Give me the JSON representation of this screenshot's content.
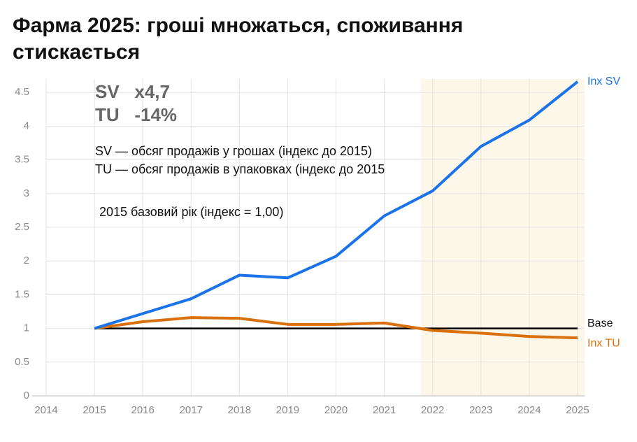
{
  "chart_data": {
    "type": "line",
    "title_lines": [
      "Фарма 2025: гроші множаться, споживання",
      "стискається"
    ],
    "x": [
      2015,
      2016,
      2017,
      2018,
      2019,
      2020,
      2021,
      2022,
      2023,
      2024,
      2025
    ],
    "series": [
      {
        "name": "Inx SV",
        "color": "#1a73e8",
        "values": [
          1.0,
          1.22,
          1.44,
          1.79,
          1.75,
          2.07,
          2.67,
          3.04,
          3.7,
          4.09,
          4.66
        ]
      },
      {
        "name": "Inx TU",
        "color": "#d9700b",
        "values": [
          1.0,
          1.1,
          1.16,
          1.15,
          1.06,
          1.06,
          1.08,
          0.97,
          0.93,
          0.88,
          0.86
        ]
      },
      {
        "name": "Base",
        "color": "#000000",
        "values": [
          1,
          1,
          1,
          1,
          1,
          1,
          1,
          1,
          1,
          1,
          1
        ]
      }
    ],
    "annotations": [
      "SV   x4,7",
      "TU   -14%",
      "SV — обсяг продажів у грошах (індекс до 2015)",
      "TU — обсяг продажів в упаковках (індекс до 2015",
      "2015 базовий рік (індекс = 1,00)"
    ],
    "shaded_range": [
      2021.75,
      2025.15
    ],
    "xlim": [
      2014,
      2025
    ],
    "ylim": [
      0,
      4.7
    ],
    "xticks": [
      2014,
      2015,
      2016,
      2017,
      2018,
      2019,
      2020,
      2021,
      2022,
      2023,
      2024,
      2025
    ],
    "yticks": [
      0,
      0.5,
      1,
      1.5,
      2,
      2.5,
      3,
      3.5,
      4,
      4.5
    ],
    "grid": true
  }
}
